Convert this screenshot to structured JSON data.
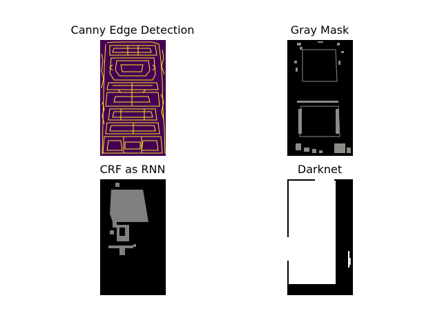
{
  "figure": {
    "panels": [
      {
        "title": "Canny Edge Detection"
      },
      {
        "title": "Gray Mask"
      },
      {
        "title": "CRF as RNN"
      },
      {
        "title": "Darknet"
      }
    ]
  },
  "colors": {
    "canny_background": "#440154",
    "canny_edges": "#fde725",
    "mask_background": "#000000",
    "gray_mask": "#8c8c86",
    "crf_mask": "#808080",
    "darknet_mask": "#ffffff"
  }
}
